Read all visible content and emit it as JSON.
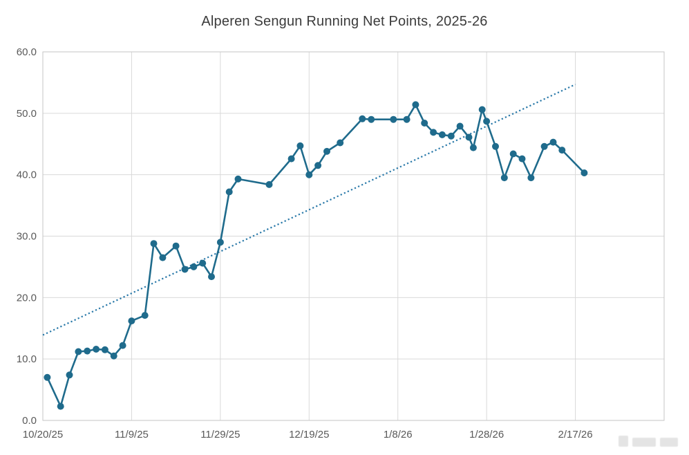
{
  "page": {
    "background": "#ffffff"
  },
  "chart_data": {
    "type": "line",
    "title": "Alperen Sengun Running Net Points, 2025-26",
    "xlabel": "",
    "ylabel": "",
    "ylim": [
      0,
      60
    ],
    "x_span_days": 140,
    "grid": true,
    "legend": "none",
    "marker": "circle",
    "x_ticks": [
      "10/20/25",
      "11/9/25",
      "11/29/25",
      "12/19/25",
      "1/8/26",
      "1/28/26",
      "2/17/26"
    ],
    "y_ticks": [
      "0.0",
      "10.0",
      "20.0",
      "30.0",
      "40.0",
      "50.0",
      "60.0"
    ],
    "series": [
      {
        "name": "Running Net Points",
        "color": "#1f6b8c",
        "points": [
          [
            "10/21/25",
            7.0
          ],
          [
            "10/24/25",
            2.3
          ],
          [
            "10/26/25",
            7.4
          ],
          [
            "10/28/25",
            11.2
          ],
          [
            "10/30/25",
            11.3
          ],
          [
            "11/1/25",
            11.6
          ],
          [
            "11/3/25",
            11.5
          ],
          [
            "11/5/25",
            10.5
          ],
          [
            "11/7/25",
            12.2
          ],
          [
            "11/9/25",
            16.2
          ],
          [
            "11/12/25",
            17.1
          ],
          [
            "11/14/25",
            28.8
          ],
          [
            "11/16/25",
            26.5
          ],
          [
            "11/19/25",
            28.4
          ],
          [
            "11/21/25",
            24.6
          ],
          [
            "11/23/25",
            25.0
          ],
          [
            "11/25/25",
            25.6
          ],
          [
            "11/27/25",
            23.4
          ],
          [
            "11/29/25",
            29.0
          ],
          [
            "12/1/25",
            37.2
          ],
          [
            "12/3/25",
            39.3
          ],
          [
            "12/10/25",
            38.4
          ],
          [
            "12/15/25",
            42.6
          ],
          [
            "12/17/25",
            44.7
          ],
          [
            "12/19/25",
            40.0
          ],
          [
            "12/21/25",
            41.5
          ],
          [
            "12/23/25",
            43.8
          ],
          [
            "12/26/25",
            45.2
          ],
          [
            "12/31/25",
            49.1
          ],
          [
            "1/2/26",
            49.0
          ],
          [
            "1/7/26",
            49.0
          ],
          [
            "1/10/26",
            49.0
          ],
          [
            "1/12/26",
            51.4
          ],
          [
            "1/14/26",
            48.4
          ],
          [
            "1/16/26",
            46.9
          ],
          [
            "1/18/26",
            46.5
          ],
          [
            "1/20/26",
            46.3
          ],
          [
            "1/22/26",
            47.9
          ],
          [
            "1/24/26",
            46.1
          ],
          [
            "1/25/26",
            44.4
          ],
          [
            "1/27/26",
            50.6
          ],
          [
            "1/28/26",
            48.7
          ],
          [
            "1/30/26",
            44.6
          ],
          [
            "2/1/26",
            39.5
          ],
          [
            "2/3/26",
            43.4
          ],
          [
            "2/5/26",
            42.6
          ],
          [
            "2/7/26",
            39.5
          ],
          [
            "2/10/26",
            44.6
          ],
          [
            "2/12/26",
            45.3
          ],
          [
            "2/14/26",
            44.0
          ],
          [
            "2/19/26",
            40.3
          ]
        ]
      }
    ],
    "trendline": {
      "style": "dotted",
      "color": "#2878a8",
      "start": [
        "10/20/25",
        13.9
      ],
      "end": [
        "2/17/26",
        54.7
      ]
    }
  }
}
